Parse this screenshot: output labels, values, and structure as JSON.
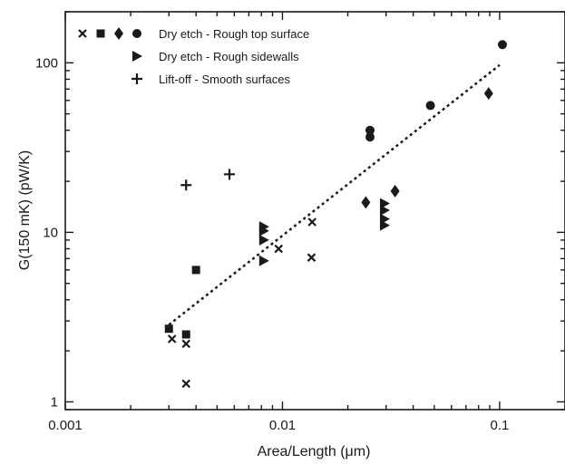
{
  "chart_data": {
    "type": "scatter",
    "xlabel": "Area/Length (μm)",
    "ylabel": "G(150 mK) (pW/K)",
    "x_scale": "log",
    "y_scale": "log",
    "xlim": [
      0.001,
      0.2
    ],
    "ylim": [
      0.9,
      200
    ],
    "x_ticks": [
      {
        "value": 0.001,
        "label": "0.001"
      },
      {
        "value": 0.01,
        "label": "0.01"
      },
      {
        "value": 0.1,
        "label": "0.1"
      }
    ],
    "y_ticks": [
      {
        "value": 1,
        "label": "1"
      },
      {
        "value": 10,
        "label": "10"
      },
      {
        "value": 100,
        "label": "100"
      }
    ],
    "grid": false,
    "legend_position": "top-left",
    "series": [
      {
        "name": "Dry etch - Rough top surface",
        "legend_group": "top",
        "marker": "cross",
        "points": [
          {
            "x": 0.0031,
            "y": 2.35
          },
          {
            "x": 0.0036,
            "y": 2.2
          },
          {
            "x": 0.0036,
            "y": 1.28
          },
          {
            "x": 0.0096,
            "y": 8.0
          },
          {
            "x": 0.0137,
            "y": 11.5
          },
          {
            "x": 0.0136,
            "y": 7.1
          }
        ]
      },
      {
        "name": "Dry etch - Rough top surface",
        "legend_group": "top",
        "marker": "square",
        "points": [
          {
            "x": 0.003,
            "y": 2.7
          },
          {
            "x": 0.0036,
            "y": 2.5
          },
          {
            "x": 0.004,
            "y": 6.0
          }
        ]
      },
      {
        "name": "Dry etch - Rough top surface",
        "legend_group": "top",
        "marker": "diamond",
        "points": [
          {
            "x": 0.0242,
            "y": 15.0
          },
          {
            "x": 0.033,
            "y": 17.5
          },
          {
            "x": 0.089,
            "y": 66.0
          }
        ]
      },
      {
        "name": "Dry etch - Rough top surface",
        "legend_group": "top",
        "marker": "circle",
        "points": [
          {
            "x": 0.0253,
            "y": 40.0
          },
          {
            "x": 0.0253,
            "y": 36.5
          },
          {
            "x": 0.048,
            "y": 56.0
          },
          {
            "x": 0.103,
            "y": 128.0
          }
        ]
      },
      {
        "name": "Dry etch - Rough sidewalls",
        "marker": "triangle-right",
        "points": [
          {
            "x": 0.0082,
            "y": 10.8
          },
          {
            "x": 0.0082,
            "y": 10.2
          },
          {
            "x": 0.0082,
            "y": 9.0
          },
          {
            "x": 0.0082,
            "y": 6.8
          },
          {
            "x": 0.0295,
            "y": 14.8
          },
          {
            "x": 0.0295,
            "y": 13.5
          },
          {
            "x": 0.0295,
            "y": 12.0
          },
          {
            "x": 0.0295,
            "y": 11.0
          }
        ]
      },
      {
        "name": "Lift-off - Smooth surfaces",
        "marker": "plus",
        "points": [
          {
            "x": 0.0036,
            "y": 19.0
          },
          {
            "x": 0.0057,
            "y": 22.0
          }
        ]
      }
    ],
    "fit_line": {
      "style": "dotted",
      "points": [
        {
          "x": 0.003,
          "y": 2.85
        },
        {
          "x": 0.1,
          "y": 97.0
        }
      ]
    }
  }
}
